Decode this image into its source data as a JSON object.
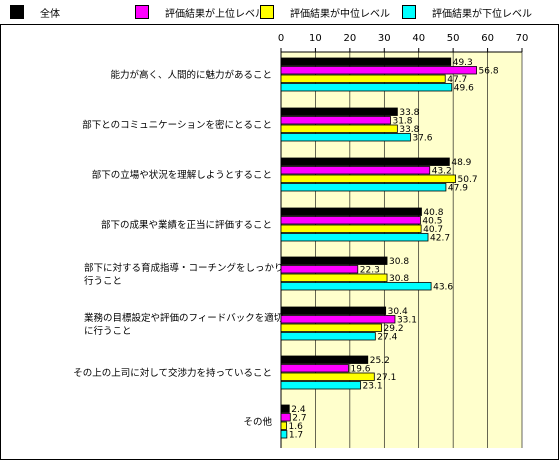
{
  "chart_data": {
    "type": "bar",
    "orientation": "horizontal",
    "categories": [
      "能力が高く、人間的に魅力があること",
      "部下とのコミュニケーションを密にとること",
      "部下の立場や状況を理解しようとすること",
      "部下の成果や業績を正当に評価すること",
      "部下に対する育成指導・コーチングをしっかり行うこと",
      "業務の目標設定や評価のフィードバックを適切に行うこと",
      "その上の上司に対して交渉力を持っていること",
      "その他"
    ],
    "series": [
      {
        "name": "全体",
        "color": "#000000",
        "values": [
          49.3,
          33.8,
          48.9,
          40.8,
          30.8,
          30.4,
          25.2,
          2.4
        ]
      },
      {
        "name": "評価結果が上位レベル",
        "color": "#ff00ff",
        "values": [
          56.8,
          31.8,
          43.2,
          40.5,
          22.3,
          33.1,
          19.6,
          2.7
        ]
      },
      {
        "name": "評価結果が中位レベル",
        "color": "#ffff00",
        "values": [
          47.7,
          33.8,
          50.7,
          40.7,
          30.8,
          29.2,
          27.1,
          1.6
        ]
      },
      {
        "name": "評価結果が下位レベル",
        "color": "#00ffff",
        "values": [
          49.6,
          37.6,
          47.9,
          42.7,
          43.6,
          27.4,
          23.1,
          1.7
        ]
      }
    ],
    "xlim": [
      0,
      70
    ],
    "ticks": [
      0,
      10,
      20,
      30,
      40,
      50,
      60,
      70
    ],
    "legend_position": "top",
    "plot_background": "#ffffcc",
    "grid": "vertical"
  }
}
